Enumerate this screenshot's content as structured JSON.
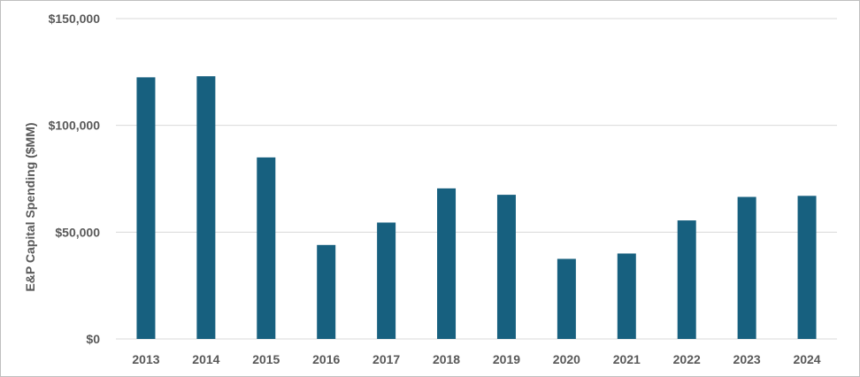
{
  "chart_data": {
    "type": "bar",
    "title": "",
    "xlabel": "",
    "ylabel": "E&P Capital Spending ($MM)",
    "categories": [
      "2013",
      "2014",
      "2015",
      "2016",
      "2017",
      "2018",
      "2019",
      "2020",
      "2021",
      "2022",
      "2023",
      "2024"
    ],
    "values": [
      122500,
      123000,
      85000,
      44000,
      54500,
      70500,
      67500,
      37500,
      40000,
      55500,
      66500,
      67000
    ],
    "ylim": [
      0,
      150000
    ],
    "yticks": [
      0,
      50000,
      100000,
      150000
    ],
    "ytick_labels": [
      "$0",
      "$50,000",
      "$100,000",
      "$150,000"
    ],
    "grid": true,
    "legend": "none",
    "bar_color": "#17607f",
    "grid_color": "#d9d9d9"
  }
}
